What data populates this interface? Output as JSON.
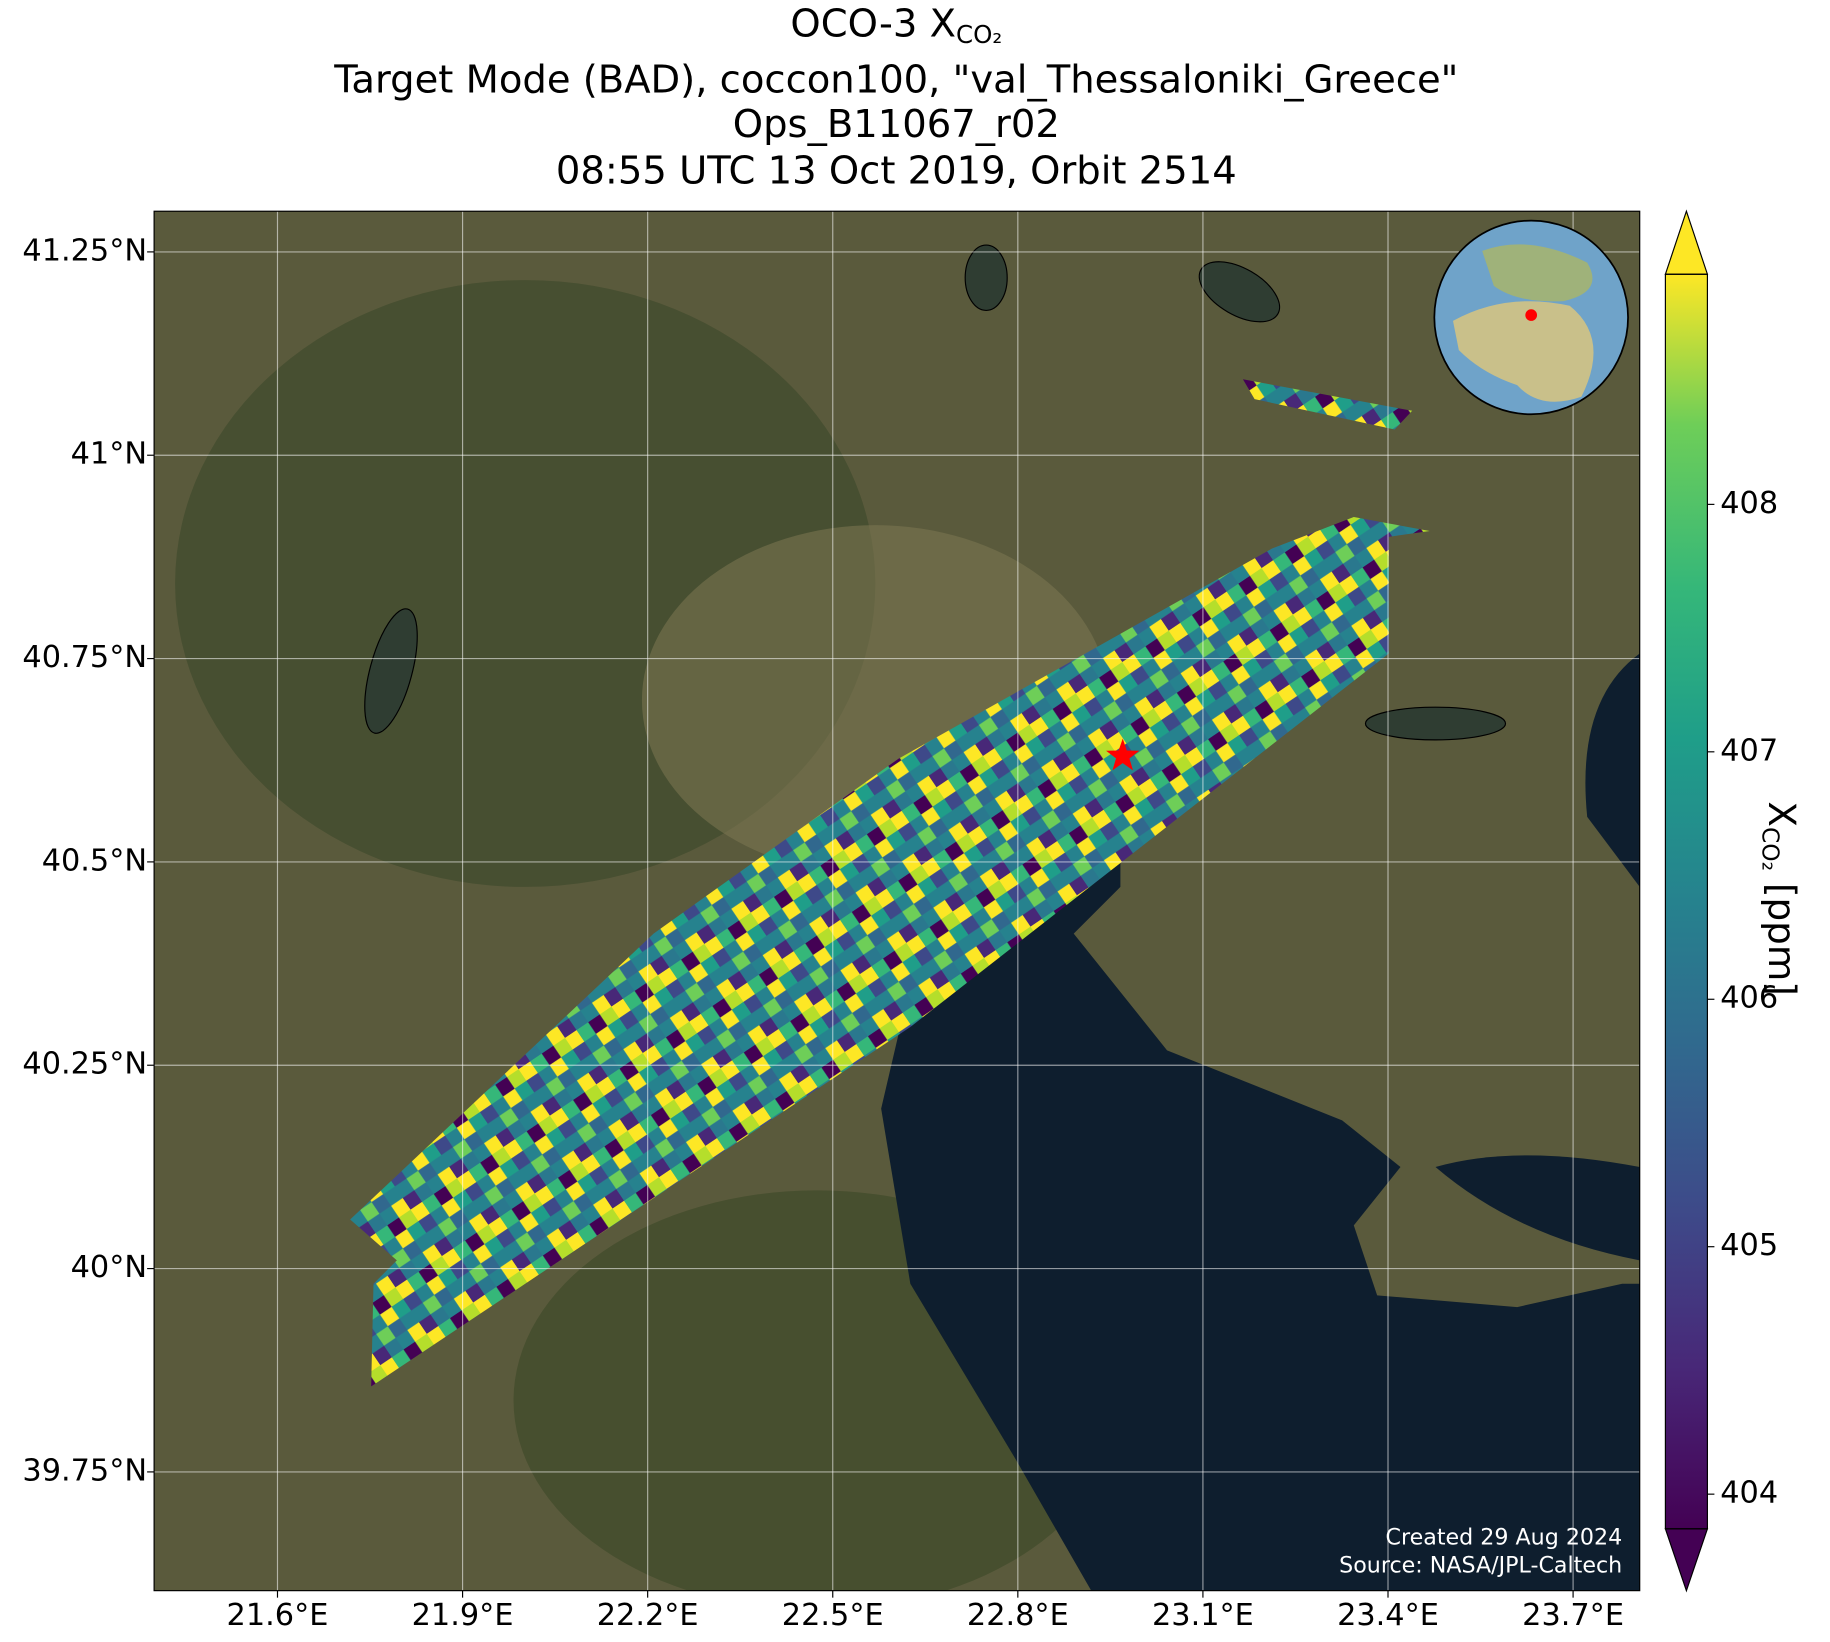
{
  "chart_data": {
    "type": "map",
    "title_lines": [
      "OCO-3 X",
      "Target Mode (BAD), coccon100, \"val_Thessaloniki_Greece\"",
      "Ops_B11067_r02",
      "08:55 UTC 13 Oct 2019, Orbit 2514"
    ],
    "title_subscript": "CO₂",
    "xlim": [
      21.4,
      23.808
    ],
    "ylim": [
      39.604,
      41.3
    ],
    "xticks": [
      {
        "value": 21.6,
        "label": "21.6°E"
      },
      {
        "value": 21.9,
        "label": "21.9°E"
      },
      {
        "value": 22.2,
        "label": "22.2°E"
      },
      {
        "value": 22.5,
        "label": "22.5°E"
      },
      {
        "value": 22.8,
        "label": "22.8°E"
      },
      {
        "value": 23.1,
        "label": "23.1°E"
      },
      {
        "value": 23.4,
        "label": "23.4°E"
      },
      {
        "value": 23.7,
        "label": "23.7°E"
      }
    ],
    "yticks": [
      {
        "value": 39.75,
        "label": "39.75°N"
      },
      {
        "value": 40,
        "label": "40°N"
      },
      {
        "value": 40.25,
        "label": "40.25°N"
      },
      {
        "value": 40.5,
        "label": "40.5°N"
      },
      {
        "value": 40.75,
        "label": "40.75°N"
      },
      {
        "value": 41,
        "label": "41°N"
      },
      {
        "value": 41.25,
        "label": "41.25°N"
      }
    ],
    "grid": true,
    "site": {
      "lon": 22.97,
      "lat": 40.63,
      "color": "#ff0000"
    },
    "colorbar": {
      "label": "X",
      "label_subscript": "CO₂",
      "label_unit": " [ppm]",
      "clim": [
        403.86,
        408.93
      ],
      "ticks": [
        404,
        405,
        406,
        407,
        408
      ],
      "colormap": "viridis"
    },
    "credits": [
      "Created 29 Aug 2024",
      "Source: NASA/JPL-Caltech"
    ]
  }
}
